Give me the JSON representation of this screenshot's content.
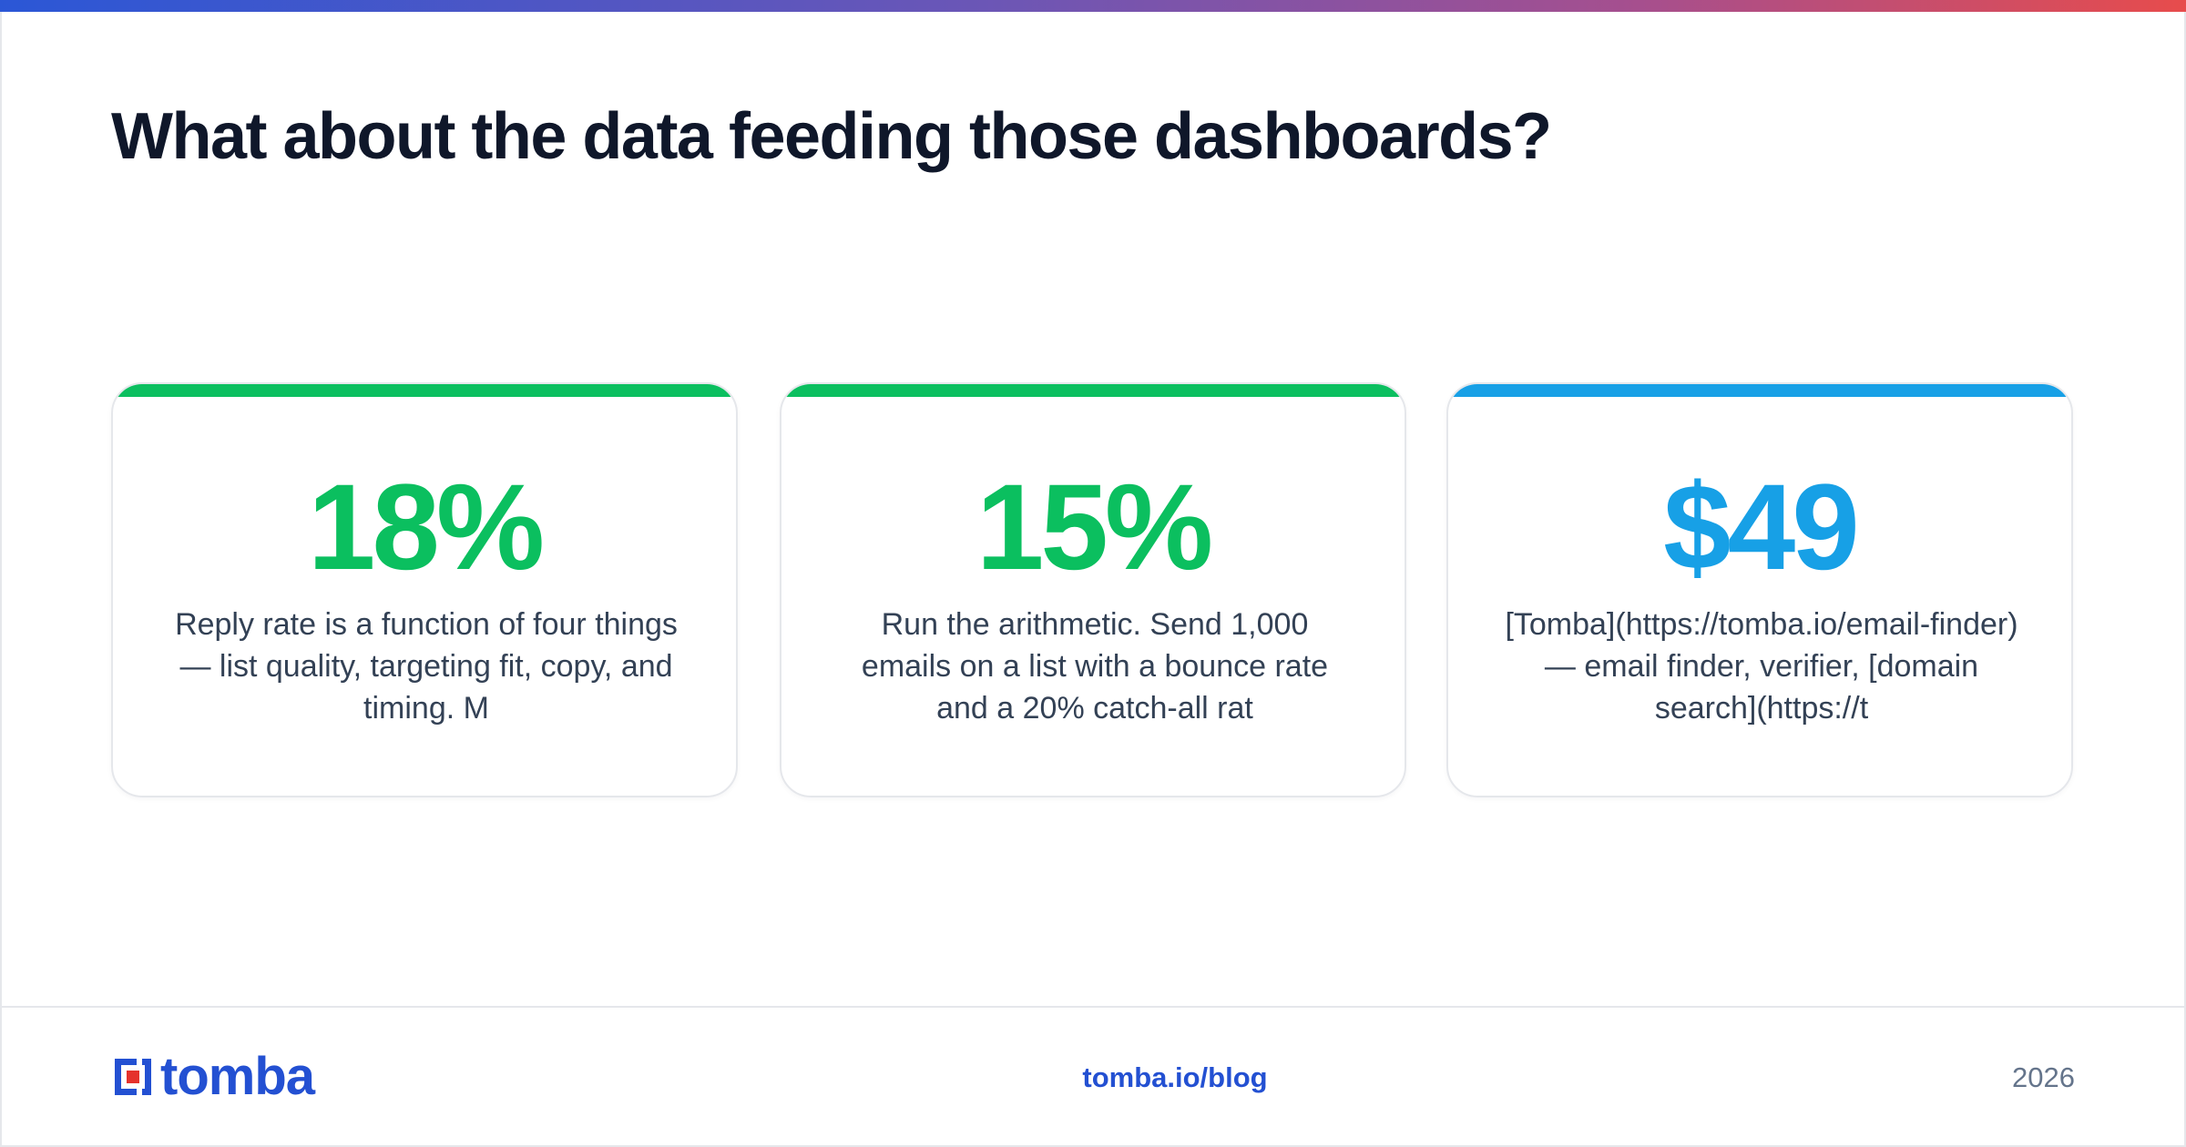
{
  "header": {
    "title": "What about the data feeding those dashboards?"
  },
  "cards": [
    {
      "stat": "18%",
      "description": "Reply rate is a function of four things — list quality, targeting fit, copy, and timing. M",
      "accent_color": "#0bbf5f"
    },
    {
      "stat": "15%",
      "description": "Run the arithmetic. Send 1,000 emails on a list with a bounce rate and a 20% catch-all rat",
      "accent_color": "#0bbf5f"
    },
    {
      "stat": "$49",
      "description": "[Tomba](https://tomba.io/email-finder) — email finder, verifier, [domain search](https://t",
      "accent_color": "#17a0e6"
    }
  ],
  "footer": {
    "logo_text": "tomba",
    "link": "tomba.io/blog",
    "year": "2026"
  },
  "colors": {
    "brand_blue": "#2350d2",
    "brand_red": "#e5322d",
    "stat_green": "#0bbf5f",
    "stat_blue": "#17a0e6",
    "title_dark": "#0f172a",
    "body_text": "#334155"
  },
  "icons": {
    "logo": "tomba-logo-icon"
  }
}
